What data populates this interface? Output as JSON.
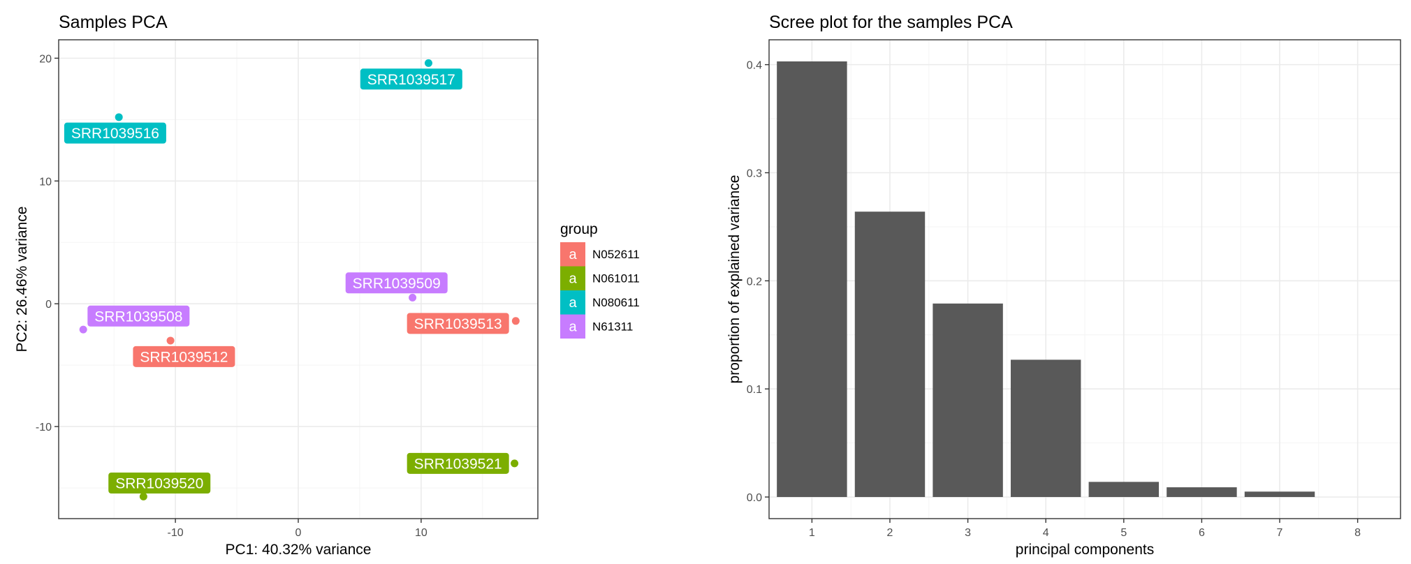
{
  "chart_data": [
    {
      "type": "scatter",
      "title": "Samples PCA",
      "xlabel": "PC1: 40.32% variance",
      "ylabel": "PC2: 26.46% variance",
      "xlim": [
        -19.5,
        19.5
      ],
      "ylim": [
        -17.5,
        21.5
      ],
      "xticks": [
        -10,
        0,
        10
      ],
      "xtick_labels": [
        "-10",
        "0",
        "10"
      ],
      "yticks": [
        -10,
        0,
        10,
        20
      ],
      "ytick_labels": [
        "-10",
        "0",
        "10",
        "20"
      ],
      "grid": true,
      "legend": {
        "title": "group",
        "position": "right",
        "key_glyph": "a",
        "entries": [
          {
            "label": "N052611",
            "color": "#F8766D"
          },
          {
            "label": "N061011",
            "color": "#7CAE00"
          },
          {
            "label": "N080611",
            "color": "#00BFC4"
          },
          {
            "label": "N61311",
            "color": "#C77CFF"
          }
        ]
      },
      "points": [
        {
          "label": "SRR1039517",
          "group": "N080611",
          "x": 10.6,
          "y": 19.6,
          "label_x": 9.2,
          "label_y": 18.3
        },
        {
          "label": "SRR1039516",
          "group": "N080611",
          "x": -14.6,
          "y": 15.2,
          "label_x": -14.9,
          "label_y": 13.9
        },
        {
          "label": "SRR1039509",
          "group": "N61311",
          "x": 9.3,
          "y": 0.5,
          "label_x": 8.0,
          "label_y": 1.7
        },
        {
          "label": "SRR1039513",
          "group": "N052611",
          "x": 17.7,
          "y": -1.4,
          "label_x": 13.0,
          "label_y": -1.6
        },
        {
          "label": "SRR1039508",
          "group": "N61311",
          "x": -17.5,
          "y": -2.1,
          "label_x": -13.0,
          "label_y": -1.0
        },
        {
          "label": "SRR1039512",
          "group": "N052611",
          "x": -10.4,
          "y": -3.0,
          "label_x": -9.3,
          "label_y": -4.3
        },
        {
          "label": "SRR1039521",
          "group": "N061011",
          "x": 17.6,
          "y": -13.0,
          "label_x": 13.0,
          "label_y": -13.0
        },
        {
          "label": "SRR1039520",
          "group": "N061011",
          "x": -12.6,
          "y": -15.7,
          "label_x": -11.3,
          "label_y": -14.6
        }
      ]
    },
    {
      "type": "bar",
      "title": "Scree plot for the samples PCA",
      "xlabel": "principal components",
      "ylabel": "proportion of explained variance",
      "categories": [
        "1",
        "2",
        "3",
        "4",
        "5",
        "6",
        "7",
        "8"
      ],
      "values": [
        0.403,
        0.264,
        0.179,
        0.127,
        0.014,
        0.009,
        0.005,
        0.0
      ],
      "bar_color": "#595959",
      "xlim": [
        0.45,
        8.55
      ],
      "ylim": [
        -0.02,
        0.423
      ],
      "yticks": [
        0.0,
        0.1,
        0.2,
        0.3,
        0.4
      ],
      "ytick_labels": [
        "0.0",
        "0.1",
        "0.2",
        "0.3",
        "0.4"
      ],
      "grid": true
    }
  ]
}
